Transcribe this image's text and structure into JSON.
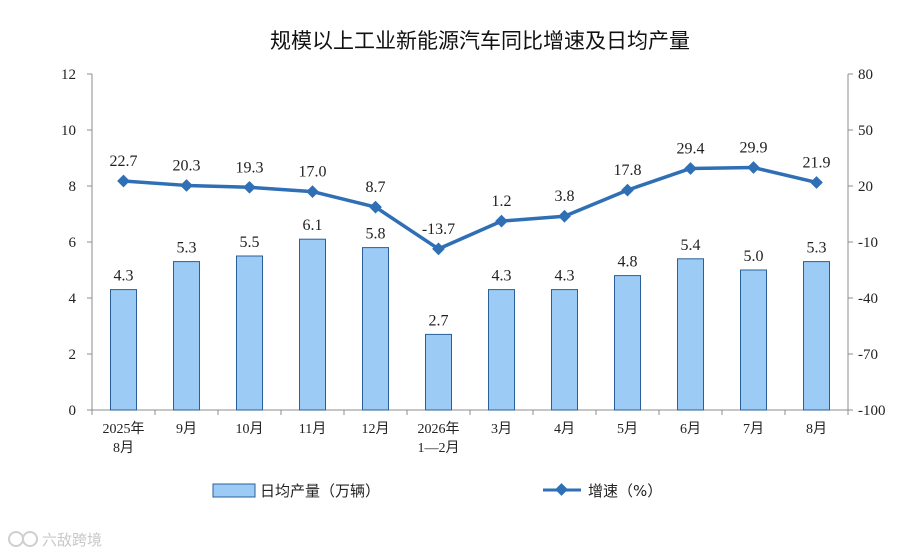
{
  "chart_data": {
    "type": "bar+line",
    "title": "规模以上工业新能源汽车同比增速及日均产量",
    "categories": [
      [
        "2025年",
        "8月"
      ],
      [
        "9月"
      ],
      [
        "10月"
      ],
      [
        "11月"
      ],
      [
        "12月"
      ],
      [
        "2026年",
        "1—2月"
      ],
      [
        "3月"
      ],
      [
        "4月"
      ],
      [
        "5月"
      ],
      [
        "6月"
      ],
      [
        "7月"
      ],
      [
        "8月"
      ]
    ],
    "series": [
      {
        "name": "日均产量（万辆）",
        "type": "bar",
        "axis": "left",
        "color": "#9ccbf5",
        "values": [
          4.3,
          5.3,
          5.5,
          6.1,
          5.8,
          2.7,
          4.3,
          4.3,
          4.8,
          5.4,
          5.0,
          5.3
        ],
        "labels": [
          "4.3",
          "5.3",
          "5.5",
          "6.1",
          "5.8",
          "2.7",
          "4.3",
          "4.3",
          "4.8",
          "5.4",
          "5.0",
          "5.3"
        ]
      },
      {
        "name": "增速（%）",
        "type": "line",
        "axis": "right",
        "color": "#2f6fb5",
        "values": [
          22.7,
          20.3,
          19.3,
          17.0,
          8.7,
          -13.7,
          1.2,
          3.8,
          17.8,
          29.4,
          29.9,
          21.9
        ],
        "labels": [
          "22.7",
          "20.3",
          "19.3",
          "17.0",
          "8.7",
          "-13.7",
          "1.2",
          "3.8",
          "17.8",
          "29.4",
          "29.9",
          "21.9"
        ]
      }
    ],
    "left_axis": {
      "ylim": [
        0,
        12
      ],
      "ticks": [
        "0",
        "2",
        "4",
        "6",
        "8",
        "10",
        "12"
      ]
    },
    "right_axis": {
      "ylim": [
        -100,
        80
      ],
      "ticks": [
        "-100",
        "-70",
        "-40",
        "-10",
        "20",
        "50",
        "80"
      ]
    },
    "legend_position": "bottom"
  },
  "watermark": "六敌跨境"
}
